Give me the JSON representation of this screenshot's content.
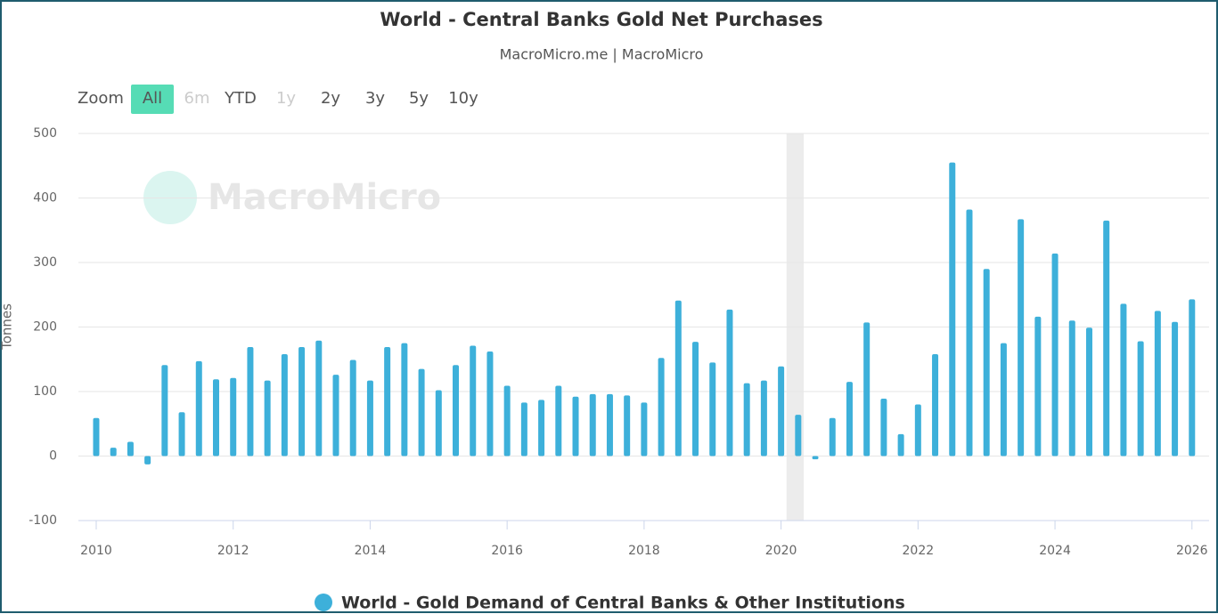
{
  "chart_data": {
    "type": "bar",
    "title": "World - Central Banks Gold Net Purchases",
    "subtitle": "MacroMicro.me | MacroMicro",
    "watermark": "MacroMicro",
    "y_label": "Tonnes",
    "range_selector": {
      "label": "Zoom",
      "buttons": [
        "All",
        "6m",
        "YTD",
        "1y",
        "2y",
        "3y",
        "5y",
        "10y"
      ],
      "selected": 0,
      "disabled": [
        1,
        3
      ]
    },
    "x": [
      2010,
      2010.25,
      2010.5,
      2010.75,
      2011,
      2011.25,
      2011.5,
      2011.75,
      2012,
      2012.25,
      2012.5,
      2012.75,
      2013,
      2013.25,
      2013.5,
      2013.75,
      2014,
      2014.25,
      2014.5,
      2014.75,
      2015,
      2015.25,
      2015.5,
      2015.75,
      2016,
      2016.25,
      2016.5,
      2016.75,
      2017,
      2017.25,
      2017.5,
      2017.75,
      2018,
      2018.25,
      2018.5,
      2018.75,
      2019,
      2019.25,
      2019.5,
      2019.75,
      2020,
      2020.25,
      2020.5,
      2020.75,
      2021,
      2021.25,
      2021.5,
      2021.75,
      2022,
      2022.25,
      2022.5,
      2022.75,
      2023,
      2023.25,
      2023.5,
      2023.75,
      2024,
      2024.25,
      2024.5,
      2024.75,
      2025,
      2025.25,
      2025.5,
      2025.75,
      2026
    ],
    "series": [
      {
        "name": "World - Gold Demand of Central Banks & Other Institutions",
        "color": "#3db0da",
        "values": [
          59,
          13,
          22,
          -13,
          141,
          68,
          147,
          119,
          121,
          169,
          117,
          158,
          169,
          179,
          126,
          149,
          117,
          169,
          175,
          135,
          102,
          141,
          171,
          162,
          109,
          83,
          87,
          109,
          92,
          96,
          96,
          94,
          83,
          152,
          241,
          177,
          145,
          227,
          113,
          117,
          139,
          64,
          -5,
          59,
          115,
          207,
          89,
          34,
          80,
          158,
          455,
          382,
          290,
          175,
          367,
          216,
          314,
          210,
          199,
          365,
          236,
          178,
          225,
          208,
          243
        ]
      }
    ],
    "shaded_band": [
      2020.08,
      2020.33
    ],
    "xlim": [
      2009.74,
      2026.25
    ],
    "xticks": [
      2010,
      2012,
      2014,
      2016,
      2018,
      2020,
      2022,
      2024,
      2026
    ],
    "ylim": [
      -100,
      500
    ],
    "yticks": [
      -100,
      0,
      100,
      200,
      300,
      400,
      500
    ],
    "grid": true
  }
}
